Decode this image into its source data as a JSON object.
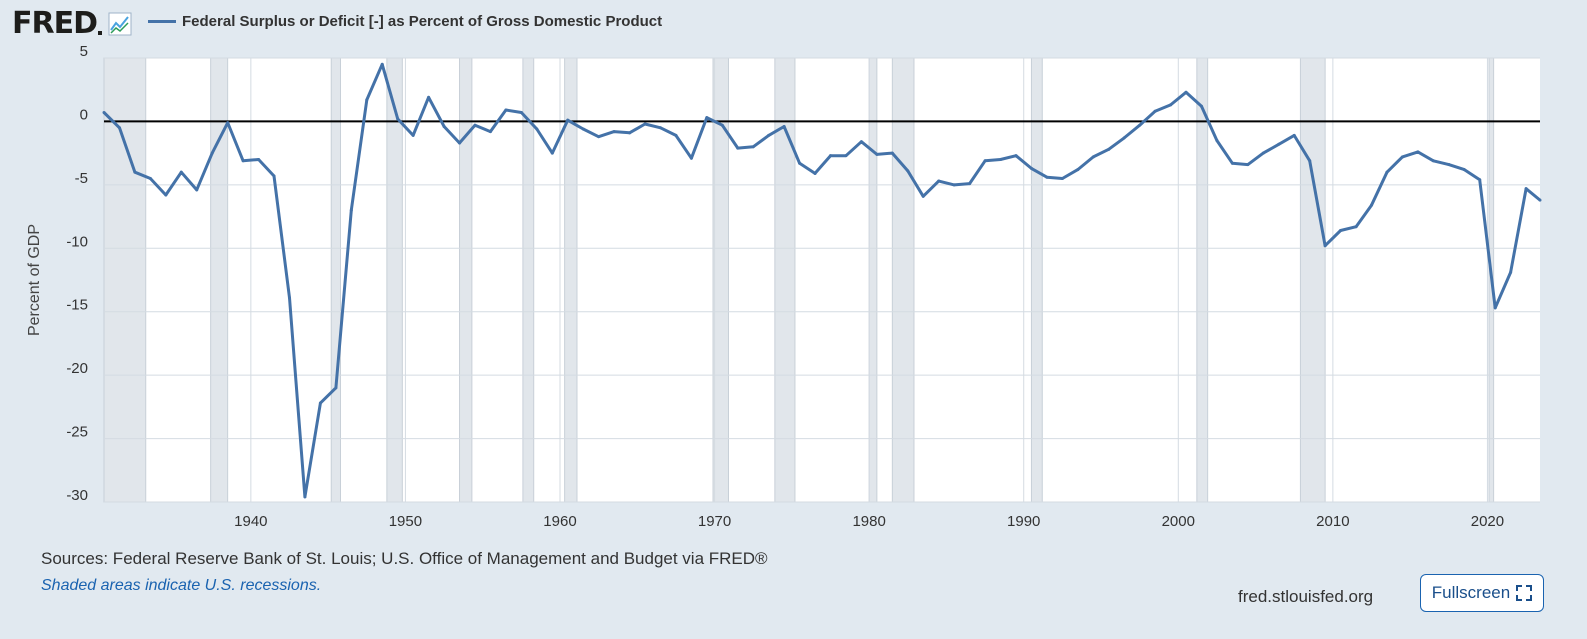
{
  "header": {
    "logo": "FRED",
    "series_title": "Federal Surplus or Deficit [-] as Percent of Gross Domestic Product"
  },
  "footer": {
    "sources": "Sources: Federal Reserve Bank of St. Louis; U.S. Office of Management and Budget via FRED®",
    "shaded_note": "Shaded areas indicate U.S. recessions.",
    "site": "fred.stlouisfed.org",
    "fullscreen_label": "Fullscreen"
  },
  "icons": {
    "logo_graph": "fred-graph-icon",
    "fullscreen": "fullscreen-icon"
  },
  "colors": {
    "series": "#4472a8",
    "background": "#e1e9f0",
    "plot_bg": "#ffffff",
    "recession": "#e1e6eb",
    "link": "#1a63b0"
  },
  "chart_data": {
    "type": "line",
    "title": "Federal Surplus or Deficit [-] as Percent of Gross Domestic Product",
    "xlabel": "",
    "ylabel": "Percent of GDP",
    "ylim": [
      -30,
      5
    ],
    "xlim": [
      1930.5,
      2023.4
    ],
    "x_ticks": [
      1940,
      1950,
      1960,
      1970,
      1980,
      1990,
      2000,
      2010,
      2020
    ],
    "y_ticks": [
      5,
      0,
      -5,
      -10,
      -15,
      -20,
      -25,
      -30
    ],
    "zero_line": true,
    "grid": true,
    "legend": "top",
    "recessions": [
      [
        1929.6,
        1933.2
      ],
      [
        1937.4,
        1938.5
      ],
      [
        1945.2,
        1945.8
      ],
      [
        1948.8,
        1949.8
      ],
      [
        1953.5,
        1954.3
      ],
      [
        1957.6,
        1958.3
      ],
      [
        1960.3,
        1961.1
      ],
      [
        1969.9,
        1970.9
      ],
      [
        1973.9,
        1975.2
      ],
      [
        1980.0,
        1980.5
      ],
      [
        1981.5,
        1982.9
      ],
      [
        1990.5,
        1991.2
      ],
      [
        2001.2,
        2001.9
      ],
      [
        2007.9,
        2009.5
      ],
      [
        2020.1,
        2020.4
      ]
    ],
    "series": [
      {
        "name": "Federal Surplus or Deficit [-] as Percent of Gross Domestic Product",
        "x": [
          1930.5,
          1931.5,
          1932.5,
          1933.5,
          1934.5,
          1935.5,
          1936.5,
          1937.5,
          1938.5,
          1939.5,
          1940.5,
          1941.5,
          1942.5,
          1943.5,
          1944.5,
          1945.5,
          1946.5,
          1947.5,
          1948.5,
          1949.5,
          1950.5,
          1951.5,
          1952.5,
          1953.5,
          1954.5,
          1955.5,
          1956.5,
          1957.5,
          1958.5,
          1959.5,
          1960.5,
          1961.5,
          1962.5,
          1963.5,
          1964.5,
          1965.5,
          1966.5,
          1967.5,
          1968.5,
          1969.5,
          1970.5,
          1971.5,
          1972.5,
          1973.5,
          1974.5,
          1975.5,
          1976.5,
          1977.5,
          1978.5,
          1979.5,
          1980.5,
          1981.5,
          1982.5,
          1983.5,
          1984.5,
          1985.5,
          1986.5,
          1987.5,
          1988.5,
          1989.5,
          1990.5,
          1991.5,
          1992.5,
          1993.5,
          1994.5,
          1995.5,
          1996.5,
          1997.5,
          1998.5,
          1999.5,
          2000.5,
          2001.5,
          2002.5,
          2003.5,
          2004.5,
          2005.5,
          2006.5,
          2007.5,
          2008.5,
          2009.5,
          2010.5,
          2011.5,
          2012.5,
          2013.5,
          2014.5,
          2015.5,
          2016.5,
          2017.5,
          2018.5,
          2019.5,
          2020.5,
          2021.5,
          2022.5,
          2023.4
        ],
        "values": [
          0.7,
          -0.5,
          -4.0,
          -4.5,
          -5.8,
          -4.0,
          -5.4,
          -2.5,
          -0.1,
          -3.1,
          -3.0,
          -4.3,
          -13.9,
          -29.6,
          -22.2,
          -21.0,
          -7.0,
          1.7,
          4.5,
          0.2,
          -1.1,
          1.9,
          -0.4,
          -1.7,
          -0.3,
          -0.8,
          0.9,
          0.7,
          -0.6,
          -2.5,
          0.1,
          -0.6,
          -1.2,
          -0.8,
          -0.9,
          -0.2,
          -0.5,
          -1.1,
          -2.9,
          0.3,
          -0.3,
          -2.1,
          -2.0,
          -1.1,
          -0.4,
          -3.3,
          -4.1,
          -2.7,
          -2.7,
          -1.6,
          -2.6,
          -2.5,
          -3.9,
          -5.9,
          -4.7,
          -5.0,
          -4.9,
          -3.1,
          -3.0,
          -2.7,
          -3.7,
          -4.4,
          -4.5,
          -3.8,
          -2.8,
          -2.2,
          -1.3,
          -0.3,
          0.8,
          1.3,
          2.3,
          1.2,
          -1.5,
          -3.3,
          -3.4,
          -2.5,
          -1.8,
          -1.1,
          -3.1,
          -9.8,
          -8.6,
          -8.3,
          -6.6,
          -4.0,
          -2.8,
          -2.4,
          -3.1,
          -3.4,
          -3.8,
          -4.6,
          -14.7,
          -11.9,
          -5.3,
          -6.2
        ]
      }
    ]
  }
}
